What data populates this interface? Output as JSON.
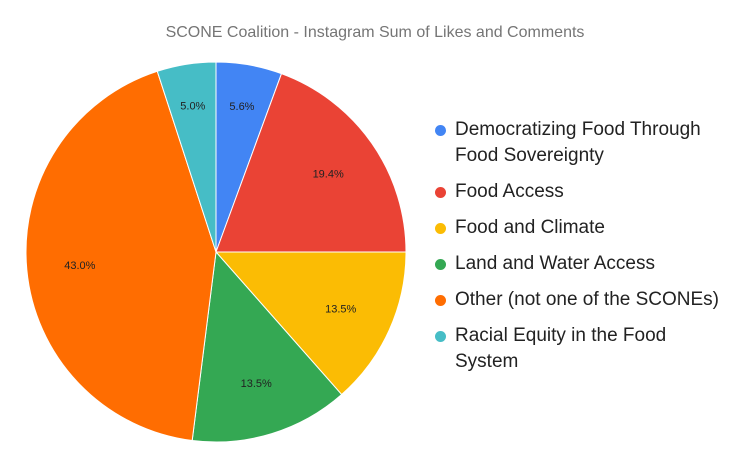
{
  "chart_data": {
    "type": "pie",
    "title": "SCONE Coalition - Instagram Sum of Likes and Comments",
    "slices": [
      {
        "label": "Democratizing Food Through Food Sovereignty",
        "value": 5.6,
        "display": "5.6%",
        "color": "#4285F4"
      },
      {
        "label": "Food Access",
        "value": 19.4,
        "display": "19.4%",
        "color": "#EA4335"
      },
      {
        "label": "Food and Climate",
        "value": 13.5,
        "display": "13.5%",
        "color": "#FBBC04"
      },
      {
        "label": "Land and Water Access",
        "value": 13.5,
        "display": "13.5%",
        "color": "#34A853"
      },
      {
        "label": "Other (not one of the SCONEs)",
        "value": 43.0,
        "display": "43.0%",
        "color": "#FF6D01"
      },
      {
        "label": "Racial Equity in the Food System",
        "value": 5.0,
        "display": "5.0%",
        "color": "#46BDC6"
      }
    ],
    "start_angle": "top, clockwise",
    "legend_position": "right"
  }
}
